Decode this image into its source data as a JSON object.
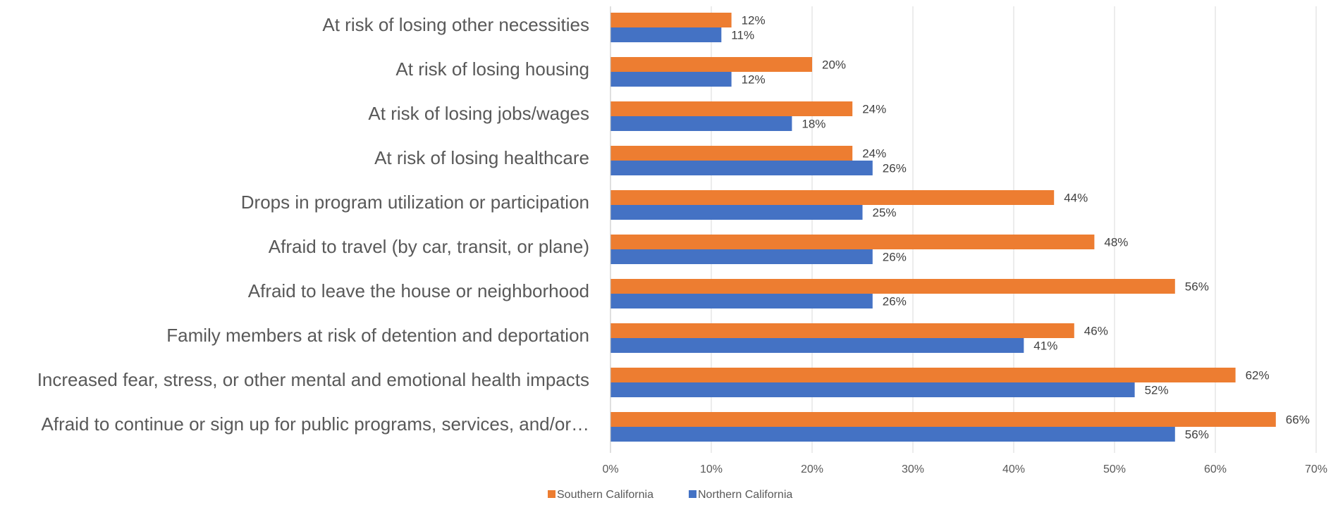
{
  "chart_data": {
    "type": "bar",
    "orientation": "horizontal",
    "categories": [
      "At risk of losing other necessities",
      "At risk of losing housing",
      "At risk of losing jobs/wages",
      "At risk of losing healthcare",
      "Drops in program utilization or participation",
      "Afraid to travel (by car, transit, or plane)",
      "Afraid to leave the house or neighborhood",
      "Family members at risk of detention and deportation",
      "Increased fear, stress, or other mental and emotional health impacts",
      "Afraid to continue or sign up for public programs, services, and/or…"
    ],
    "series": [
      {
        "name": "Southern California",
        "color": "#ED7D31",
        "values": [
          12,
          20,
          24,
          24,
          44,
          48,
          56,
          46,
          62,
          66
        ],
        "labels": [
          "12%",
          "20%",
          "24%",
          "24%",
          "44%",
          "48%",
          "56%",
          "46%",
          "62%",
          "66%"
        ]
      },
      {
        "name": "Northern California",
        "color": "#4472C4",
        "values": [
          11,
          12,
          18,
          26,
          25,
          26,
          26,
          41,
          52,
          56
        ],
        "labels": [
          "11%",
          "12%",
          "18%",
          "26%",
          "25%",
          "26%",
          "26%",
          "41%",
          "52%",
          "56%"
        ]
      }
    ],
    "xlim": [
      0,
      70
    ],
    "xticks": [
      "0%",
      "10%",
      "20%",
      "30%",
      "40%",
      "50%",
      "60%",
      "70%"
    ],
    "grid": true,
    "legend_position": "bottom"
  }
}
